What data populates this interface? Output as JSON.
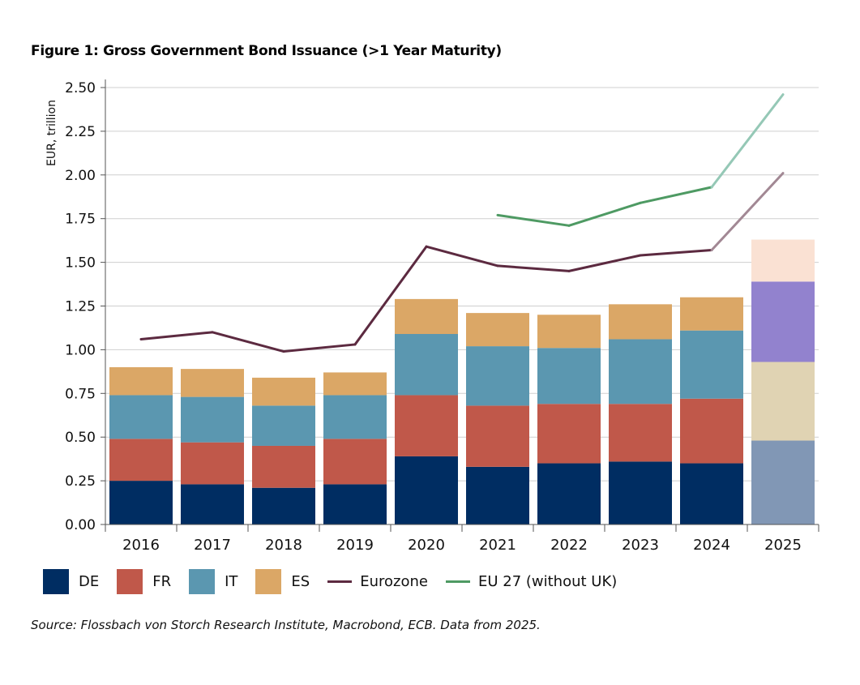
{
  "chart_data": {
    "type": "bar",
    "stacked": true,
    "title": "Figure 1: Gross Government Bond Issuance (>1 Year Maturity)",
    "ylabel": "EUR, trillion",
    "xlabel": "",
    "ylim": [
      0,
      2.5
    ],
    "yticks": [
      "0.00",
      "0.25",
      "0.50",
      "0.75",
      "1.00",
      "1.25",
      "1.50",
      "1.75",
      "2.00",
      "2.25",
      "2.50"
    ],
    "grid": true,
    "legend_position": "bottom",
    "categories": [
      "2016",
      "2017",
      "2018",
      "2019",
      "2020",
      "2021",
      "2022",
      "2023",
      "2024",
      "2025"
    ],
    "series": [
      {
        "name": "DE",
        "kind": "bar",
        "color": "#002D62",
        "color_2025": "#8197B5",
        "values": [
          0.25,
          0.23,
          0.21,
          0.23,
          0.39,
          0.33,
          0.35,
          0.36,
          0.35,
          0.48
        ]
      },
      {
        "name": "FR",
        "kind": "bar",
        "color": "#C0584A",
        "color_2025": "#E0D3B3",
        "values": [
          0.24,
          0.24,
          0.24,
          0.26,
          0.35,
          0.35,
          0.34,
          0.33,
          0.37,
          0.45
        ]
      },
      {
        "name": "IT",
        "kind": "bar",
        "color": "#5B97B0",
        "color_2025": "#9282CE",
        "values": [
          0.25,
          0.26,
          0.23,
          0.25,
          0.35,
          0.34,
          0.32,
          0.37,
          0.39,
          0.46
        ]
      },
      {
        "name": "ES",
        "kind": "bar",
        "color": "#DBA766",
        "color_2025": "#FAE1D3",
        "values": [
          0.16,
          0.16,
          0.16,
          0.13,
          0.2,
          0.19,
          0.19,
          0.2,
          0.19,
          0.24
        ]
      },
      {
        "name": "Eurozone",
        "kind": "line",
        "color": "#5C2A40",
        "color_2025": "#A28894",
        "values": [
          1.06,
          1.1,
          0.99,
          1.03,
          1.59,
          1.48,
          1.45,
          1.54,
          1.57,
          2.01
        ]
      },
      {
        "name": "EU 27 (without UK)",
        "kind": "line",
        "color": "#4E9A63",
        "color_2025": "#95C8B6",
        "values": [
          null,
          null,
          null,
          null,
          null,
          1.77,
          1.71,
          1.84,
          1.93,
          2.46
        ]
      }
    ],
    "source": "Source: Flossbach von Storch Research Institute, Macrobond, ECB. Data from 2025."
  }
}
